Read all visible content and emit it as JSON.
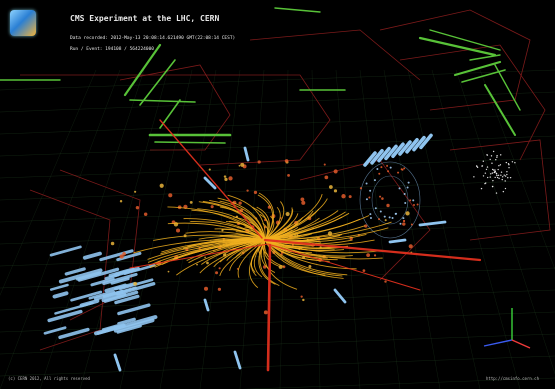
{
  "overlay": {
    "title": "CMS Experiment at the LHC, CERN",
    "line1": "Data recorded: 2012-May-13 20:08:14.621490 GMT(22:08:14 CEST)",
    "line2": "Run / Event: 194108 / 564224000",
    "footer_left": "(c) CERN 2012, All rights reserved",
    "footer_right": "http://cmsinfo.cern.ch"
  },
  "colors": {
    "background": "#000000",
    "tracks": "#f2b01e",
    "muon_tracks": "#e0301e",
    "hcal_towers": "#8fc4ef",
    "muon_chambers": "#58c238",
    "detector_outline": "#8a1d1d",
    "grid": "#2f5a2f",
    "hits": "#e05a2a"
  },
  "icons": {
    "logo": "cms-logo-icon",
    "axes": "xyz-axes-icon"
  }
}
